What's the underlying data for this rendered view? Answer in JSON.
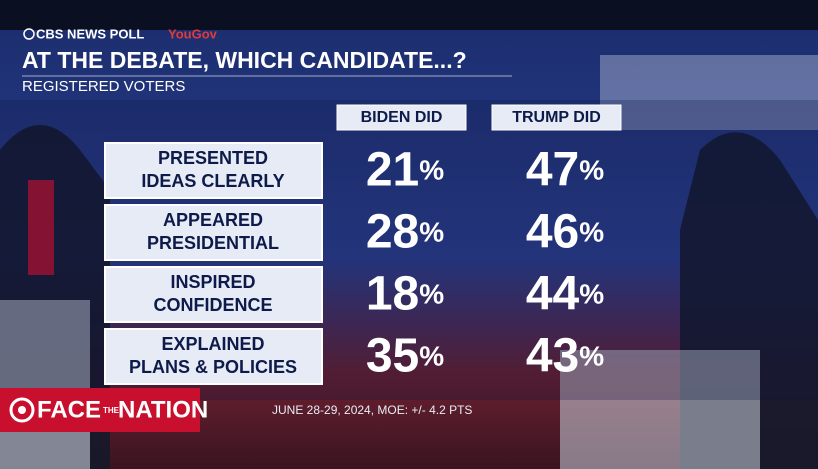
{
  "header": {
    "source": "CBS NEWS POLL",
    "partner": "YouGov",
    "title": "AT THE DEBATE, WHICH CANDIDATE...?",
    "subtitle": "REGISTERED VOTERS"
  },
  "table": {
    "columns": [
      "BIDEN DID",
      "TRUMP DID"
    ],
    "rows": [
      {
        "label": [
          "PRESENTED",
          "IDEAS CLEARLY"
        ],
        "cells": [
          "21%",
          "47%"
        ]
      },
      {
        "label": [
          "APPEARED",
          "PRESIDENTIAL"
        ],
        "cells": [
          "28%",
          "46%"
        ]
      },
      {
        "label": [
          "INSPIRED",
          "CONFIDENCE"
        ],
        "cells": [
          "18%",
          "44%"
        ]
      },
      {
        "label": [
          "EXPLAINED",
          "PLANS & POLICIES"
        ],
        "cells": [
          "35%",
          "43%"
        ]
      }
    ]
  },
  "footer": {
    "note": "JUNE 28-29, 2024, MOE: +/- 4.2 PTS",
    "logo": [
      "FACE",
      "THE",
      "NATION"
    ]
  }
}
